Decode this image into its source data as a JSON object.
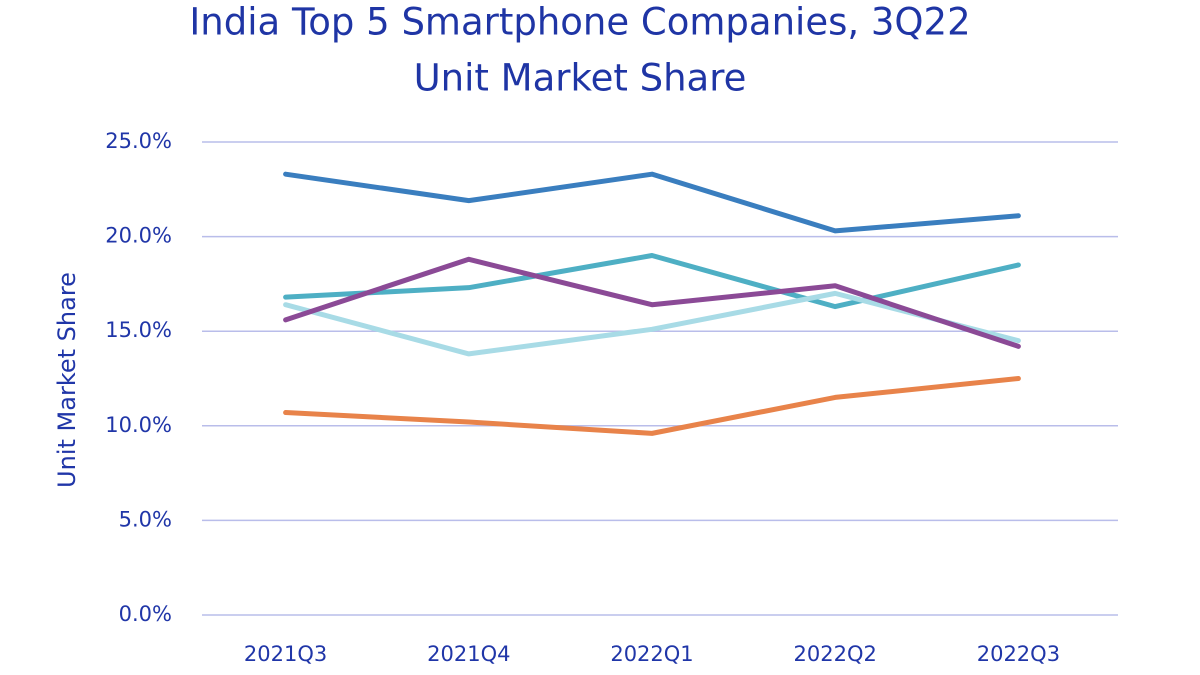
{
  "chart_data": {
    "type": "line",
    "title": "India Top 5 Smartphone Companies, 3Q22",
    "subtitle": "Unit Market Share",
    "ylabel": "Unit Market Share",
    "categories": [
      "2021Q3",
      "2021Q4",
      "2022Q1",
      "2022Q2",
      "2022Q3"
    ],
    "series": [
      {
        "color": "#3a7ebf",
        "values": [
          23.3,
          21.9,
          23.3,
          20.3,
          21.1
        ]
      },
      {
        "color": "#4eafc4",
        "values": [
          16.8,
          17.3,
          19.0,
          16.3,
          18.5
        ]
      },
      {
        "color": "#a8dbe6",
        "values": [
          16.4,
          13.8,
          15.1,
          17.0,
          14.5
        ]
      },
      {
        "color": "#8b4a96",
        "values": [
          15.6,
          18.8,
          16.4,
          17.4,
          14.2
        ]
      },
      {
        "color": "#e8834a",
        "values": [
          10.7,
          10.2,
          9.6,
          11.5,
          12.5
        ]
      }
    ],
    "ylim": [
      0,
      25
    ],
    "yticks": [
      {
        "value": 0,
        "label": "0.0%"
      },
      {
        "value": 5,
        "label": "5.0%"
      },
      {
        "value": 10,
        "label": "10.0%"
      },
      {
        "value": 15,
        "label": "15.0%"
      },
      {
        "value": 20,
        "label": "20.0%"
      },
      {
        "value": 25,
        "label": "25.0%"
      }
    ],
    "grid": true
  }
}
